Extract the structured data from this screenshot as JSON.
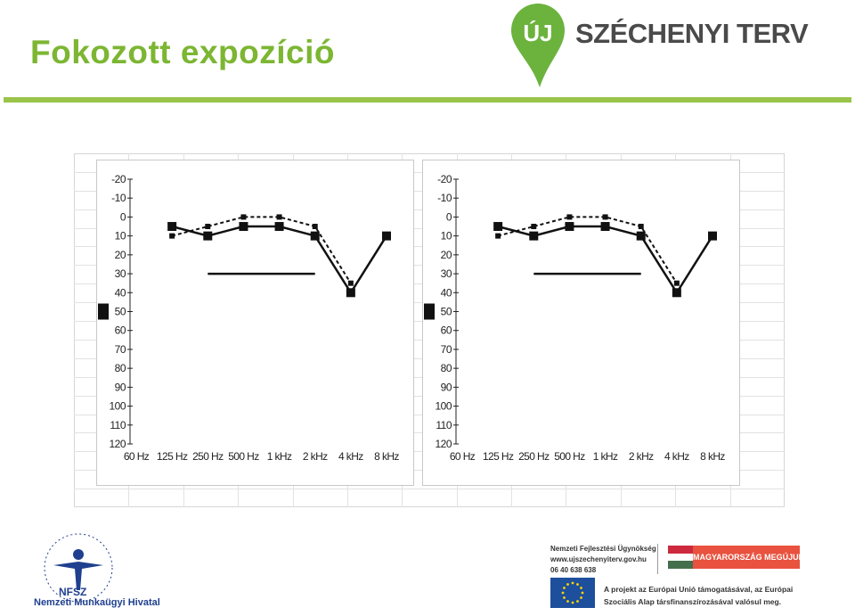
{
  "slide": {
    "title": "Fokozott expozíció",
    "accent_color": "#7cb632",
    "divider_color": "#9ac449"
  },
  "brand": {
    "badge": "ÚJ",
    "name": "SZÉCHENYI TERV",
    "badge_color": "#6cb33e"
  },
  "chart_data": [
    {
      "type": "line",
      "chart": "audiogram-left",
      "x_categories": [
        "60 Hz",
        "125 Hz",
        "250 Hz",
        "500 Hz",
        "1 kHz",
        "2 kHz",
        "4 kHz",
        "8 kHz"
      ],
      "y_ticks": [
        -20,
        -10,
        0,
        10,
        20,
        30,
        40,
        50,
        60,
        70,
        80,
        90,
        100,
        110,
        120
      ],
      "ylim": [
        -20,
        120
      ],
      "y_inverted": true,
      "series": [
        {
          "style": "solid",
          "marker": "square",
          "x": [
            "125 Hz",
            "250 Hz",
            "500 Hz",
            "1 kHz",
            "2 kHz",
            "4 kHz",
            "8 kHz"
          ],
          "values": [
            5,
            10,
            5,
            5,
            10,
            40,
            10
          ]
        },
        {
          "style": "dashed",
          "marker": "small-square",
          "x": [
            "125 Hz",
            "250 Hz",
            "500 Hz",
            "1 kHz",
            "2 kHz",
            "4 kHz"
          ],
          "values": [
            10,
            5,
            0,
            0,
            5,
            35
          ]
        },
        {
          "style": "solid-flat",
          "marker": "none",
          "x": [
            "250 Hz",
            "2 kHz"
          ],
          "values": [
            30,
            30
          ]
        }
      ],
      "side_marker_level": 50
    },
    {
      "type": "line",
      "chart": "audiogram-right",
      "x_categories": [
        "60 Hz",
        "125 Hz",
        "250 Hz",
        "500 Hz",
        "1 kHz",
        "2 kHz",
        "4 kHz",
        "8 kHz"
      ],
      "y_ticks": [
        -20,
        -10,
        0,
        10,
        20,
        30,
        40,
        50,
        60,
        70,
        80,
        90,
        100,
        110,
        120
      ],
      "ylim": [
        -20,
        120
      ],
      "y_inverted": true,
      "series": [
        {
          "style": "solid",
          "marker": "square",
          "x": [
            "125 Hz",
            "250 Hz",
            "500 Hz",
            "1 kHz",
            "2 kHz",
            "4 kHz",
            "8 kHz"
          ],
          "values": [
            5,
            10,
            5,
            5,
            10,
            40,
            10
          ]
        },
        {
          "style": "dashed",
          "marker": "small-square",
          "x": [
            "125 Hz",
            "250 Hz",
            "500 Hz",
            "1 kHz",
            "2 kHz",
            "4 kHz"
          ],
          "values": [
            10,
            5,
            0,
            0,
            5,
            35
          ]
        },
        {
          "style": "solid-flat",
          "marker": "none",
          "x": [
            "250 Hz",
            "2 kHz"
          ],
          "values": [
            30,
            30
          ]
        }
      ],
      "side_marker_level": 50
    }
  ],
  "footer": {
    "nfsz_abbr": "NFSZ",
    "nfsz_name": "Nemzeti Munkaügyi Hivatal",
    "nfsz_ring_text": "NEMZETI FOGLALKOZTATÁSI SZOLGÁLAT",
    "agency": "Nemzeti Fejlesztési Ügynökség",
    "web": "www.ujszechenyiterv.gov.hu",
    "phone": "06 40 638 638",
    "mm_label": "MAGYARORSZÁG MEGÚJUL",
    "eu_line1": "A projekt az Európai Unió támogatásával, az Európai",
    "eu_line2": "Szociális Alap társfinanszírozásával valósul meg."
  }
}
